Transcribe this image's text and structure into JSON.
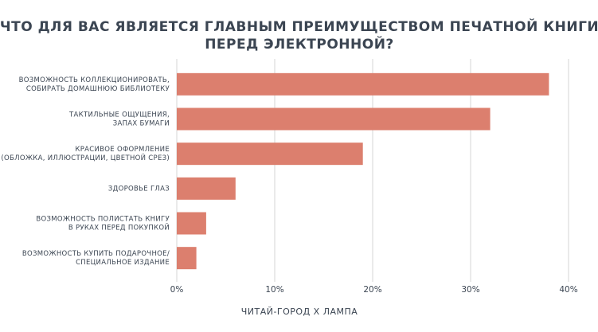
{
  "chart_data": {
    "type": "bar",
    "orientation": "horizontal",
    "title": [
      "ЧТО ДЛЯ ВАС ЯВЛЯЕТСЯ ГЛАВНЫМ ПРЕИМУЩЕСТВОМ ПЕЧАТНОЙ КНИГИ",
      "ПЕРЕД ЭЛЕКТРОННОЙ?"
    ],
    "categories": [
      [
        "ВОЗМОЖНОСТЬ КОЛЛЕКЦИОНИРОВАТЬ,",
        "СОБИРАТЬ ДОМАШНЮЮ БИБЛИОТЕКУ"
      ],
      [
        "ТАКТИЛЬНЫЕ ОЩУЩЕНИЯ,",
        "ЗАПАХ БУМАГИ"
      ],
      [
        "КРАСИВОЕ ОФОРМЛЕНИЕ",
        "(ОБЛОЖКА, ИЛЛЮСТРАЦИИ, ЦВЕТНОЙ СРЕЗ)"
      ],
      [
        "ЗДОРОВЬЕ ГЛАЗ"
      ],
      [
        "ВОЗМОЖНОСТЬ ПОЛИСТАТЬ КНИГУ",
        "В РУКАХ ПЕРЕД ПОКУПКОЙ"
      ],
      [
        "ВОЗМОЖНОСТЬ КУПИТЬ ПОДАРОЧНОЕ/",
        "СПЕЦИАЛЬНОЕ ИЗДАНИЕ"
      ]
    ],
    "values": [
      38,
      32,
      19,
      6,
      3,
      2
    ],
    "color": "#dc7f6e",
    "xlim": [
      0,
      40
    ],
    "xticks": [
      {
        "value": 0,
        "label": "0%"
      },
      {
        "value": 10,
        "label": "10%"
      },
      {
        "value": 20,
        "label": "20%"
      },
      {
        "value": 30,
        "label": "30%"
      },
      {
        "value": 40,
        "label": "40%"
      }
    ],
    "grid": true,
    "source": "ЧИТАЙ-ГОРОД X ЛАМПА"
  }
}
